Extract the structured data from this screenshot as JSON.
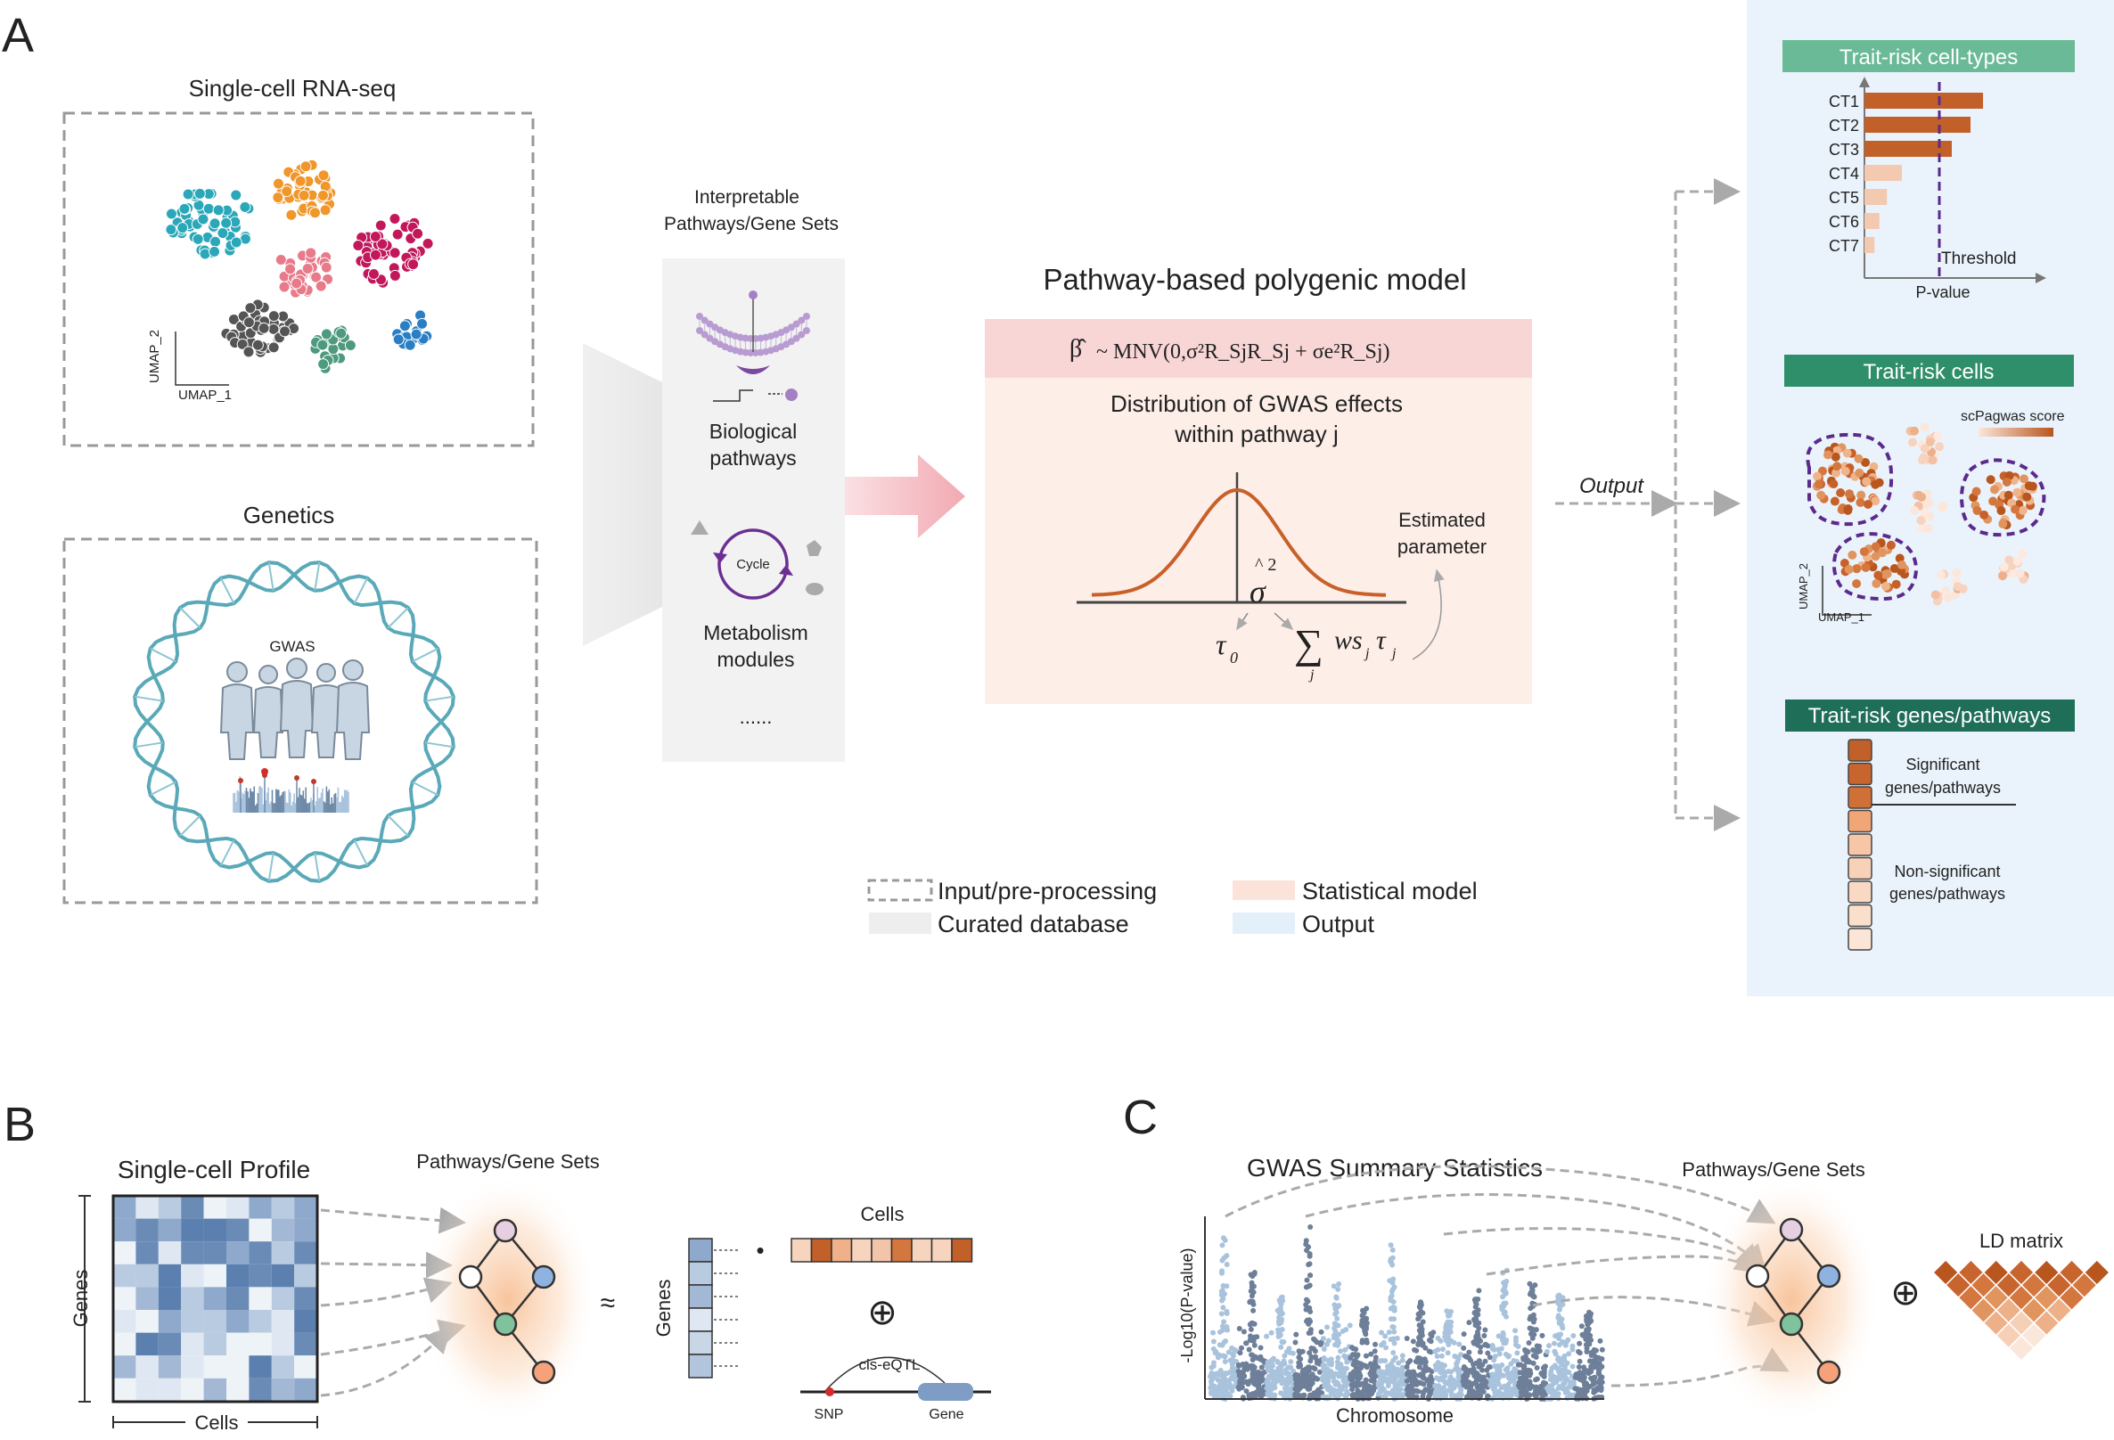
{
  "panel_a": {
    "label": "A",
    "scrna_title": "Single-cell RNA-seq",
    "umap_x": "UMAP_1",
    "umap_y": "UMAP_2",
    "genetics_title": "Genetics",
    "gwas_label": "GWAS",
    "pathways_title_1": "Interpretable",
    "pathways_title_2": "Pathways/Gene Sets",
    "bio_pathways_1": "Biological",
    "bio_pathways_2": "pathways",
    "cycle_label": "Cycle",
    "metab_1": "Metabolism",
    "metab_2": "modules",
    "ellipsis": "......",
    "model_title": "Pathway-based polygenic model",
    "formula_lhs": "β̂",
    "formula_rhs": "~ MNV(0,σ²R_SjR_Sj + σe²R_Sj)",
    "dist_1": "Distribution of GWAS effects",
    "dist_2": "within pathway j",
    "sigma_hat": "^ 2",
    "sigma": "σ",
    "tau0": "τ",
    "tau0_sub": "0",
    "sum_expr": "ws",
    "sum_sub": "j",
    "sum_tau": "τ",
    "est_1": "Estimated",
    "est_2": "parameter",
    "output_label": "Output"
  },
  "legend": {
    "input": "Input/pre-processing",
    "curated": "Curated database",
    "statistical": "Statistical model",
    "output": "Output"
  },
  "output_panel": {
    "celltypes_title": "Trait-risk cell-types",
    "celltypes": [
      "CT1",
      "CT2",
      "CT3",
      "CT4",
      "CT5",
      "CT6",
      "CT7"
    ],
    "threshold_label": "Threshold",
    "pvalue_label": "P-value",
    "cells_title": "Trait-risk cells",
    "score_label": "scPagwas score",
    "umap_x": "UMAP_1",
    "umap_y": "UMAP_2",
    "genes_title": "Trait-risk genes/pathways",
    "sig_1": "Significant",
    "sig_2": "genes/pathways",
    "nonsig_1": "Non-significant",
    "nonsig_2": "genes/pathways"
  },
  "panel_b": {
    "label": "B",
    "profile_title": "Single-cell Profile",
    "genes_label": "Genes",
    "cells_label": "Cells",
    "pathways_title": "Pathways/Gene Sets",
    "approx": "≈",
    "genes_vec_label": "Genes",
    "cells_vec_label": "Cells",
    "dot": "•",
    "oplus": "⊕",
    "eqtl_label": "cis-eQTL",
    "snp_label": "SNP",
    "gene_label": "Gene"
  },
  "panel_c": {
    "label": "C",
    "gwas_title": "GWAS Summary Statistics",
    "ylabel": "-Log10(P-value)",
    "xlabel": "Chromosome",
    "pathways_title": "Pathways/Gene Sets",
    "oplus": "⊕",
    "ld_title": "LD matrix"
  },
  "colors": {
    "umap_teal": "#2aa7b8",
    "umap_orange": "#f0962a",
    "umap_pink": "#e87a8a",
    "umap_magenta": "#c2185b",
    "umap_gray": "#555555",
    "umap_green": "#4e9a7e",
    "umap_blue": "#2a7fc4",
    "bar_dark": "#c2602a",
    "bar_light": "#f3c9b0",
    "threshold_purple": "#5b2a8c",
    "header_green_1": "#6ab997",
    "header_green_2": "#2f8f6a",
    "header_green_3": "#1f6e58",
    "output_bg": "#eaf3fb",
    "model_bg": "#fdeee8",
    "model_header": "#f9d6d6",
    "curated_bg": "#f2f2f2"
  },
  "chart_data": {
    "type": "bar",
    "categories": [
      "CT1",
      "CT2",
      "CT3",
      "CT4",
      "CT5",
      "CT6",
      "CT7"
    ],
    "values": [
      0.95,
      0.85,
      0.7,
      0.3,
      0.18,
      0.12,
      0.08
    ],
    "threshold": 0.6,
    "xlabel": "P-value",
    "ylabel": ""
  }
}
